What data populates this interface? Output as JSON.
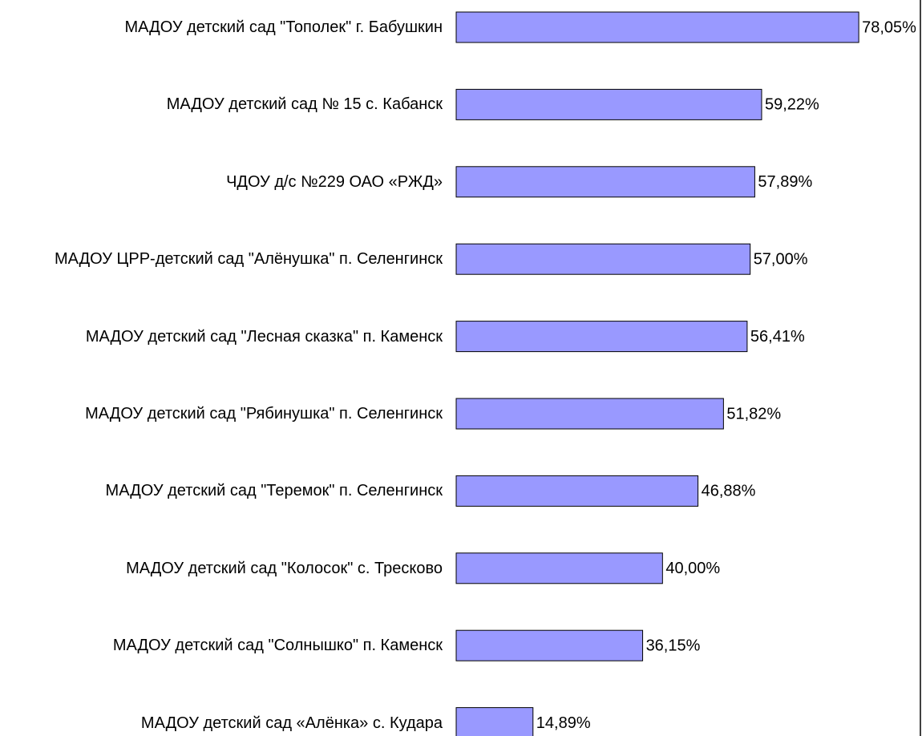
{
  "chart_data": {
    "type": "barh",
    "categories": [
      "МАДОУ детский сад \"Тополек\" г. Бабушкин",
      "МАДОУ детский сад № 15 с. Кабанск",
      "ЧДОУ д/с №229 ОАО «РЖД»",
      "МАДОУ ЦРР-детский сад \"Алёнушка\" п. Селенгинск",
      "МАДОУ детский сад \"Лесная сказка\" п. Каменск",
      "МАДОУ детский сад \"Рябинушка\" п. Селенгинск",
      "МАДОУ детский сад \"Теремок\" п. Селенгинск",
      "МАДОУ детский сад \"Колосок\" с. Тресково",
      "МАДОУ детский сад \"Солнышко\" п. Каменск",
      "МАДОУ детский сад «Алёнка» с. Кудара"
    ],
    "values": [
      78.05,
      59.22,
      57.89,
      57.0,
      56.41,
      51.82,
      46.88,
      40.0,
      36.15,
      14.89
    ],
    "value_labels": [
      "78,05%",
      "59,22%",
      "57,89%",
      "57,00%",
      "56,41%",
      "51,82%",
      "46,88%",
      "40,00%",
      "36,15%",
      "14,89%"
    ],
    "color": "#9999ff",
    "xlim": [
      0,
      90
    ]
  }
}
